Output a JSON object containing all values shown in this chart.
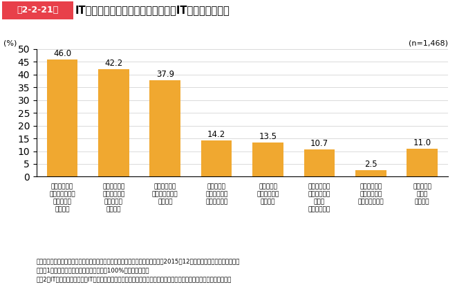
{
  "title_box": "第2-2-21図",
  "title_main": "IT人材が不足している企業が抱えるIT人材育成の課題",
  "n_label": "(n=1,468)",
  "ylabel": "(%)",
  "ylim": [
    0,
    50
  ],
  "yticks": [
    0,
    5,
    10,
    15,
    20,
    25,
    30,
    35,
    40,
    45,
    50
  ],
  "bar_color": "#F0A830",
  "categories": [
    "指導・育成を\n行う能力のある\n社員が不足\nしている",
    "社員が多忙で\n教育を受ける\n時間が確保\nできない",
    "指導・育成の\n手段やノウハウ\nが乏しい",
    "社員のモチ\nベーションが\n不足している",
    "人材育成の\nコストが負担\nできない",
    "人材の訓練・\n育成のための\n設備が\n不足している",
    "外部専門家の\nネットワーク\nが不足している",
    "人材確保の\n課題は\n特にない"
  ],
  "values": [
    46.0,
    42.2,
    37.9,
    14.2,
    13.5,
    10.7,
    2.5,
    11.0
  ],
  "footnote1": "資料：中小企業庁委託「中小企業の成長と投資行動に関するアンケート調査」（2015年12月、（株）帝国データバンク）",
  "footnote2": "（注）1．複数回答のため、合計は必ずしも100%にはならない。",
  "footnote3": "　　2．IT投資を行っており、IT人材が「やや不足している」「とても不足している」と回答した企業を集計している。"
}
